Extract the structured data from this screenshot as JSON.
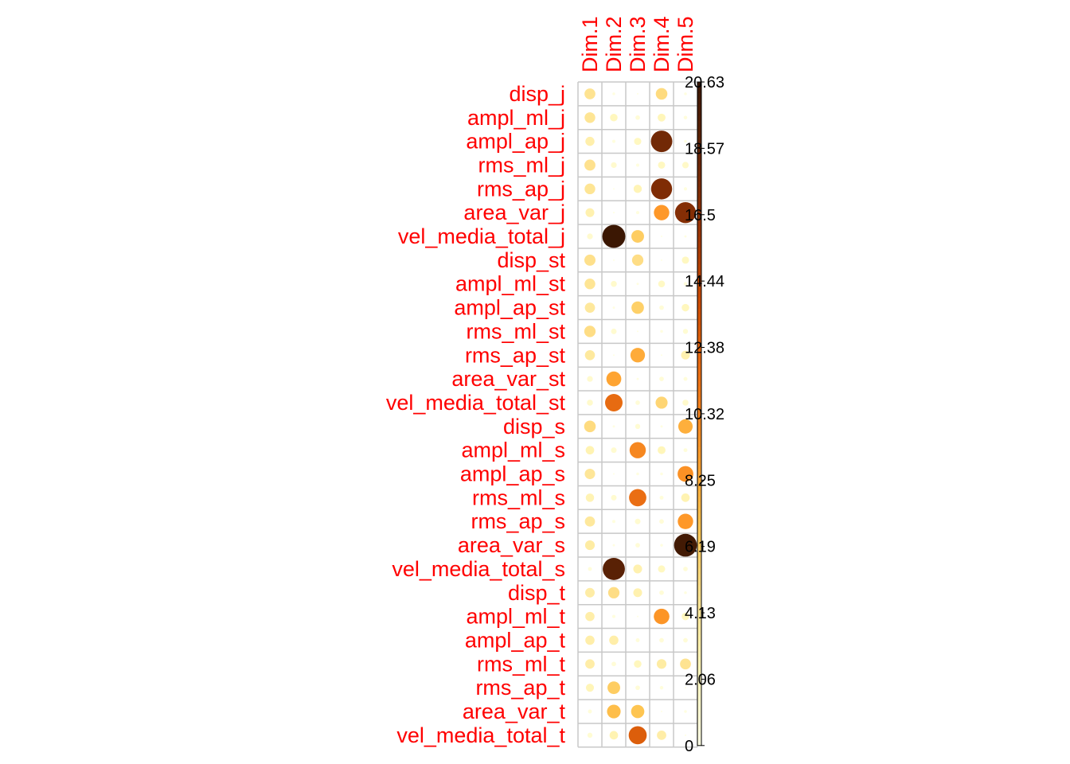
{
  "chart_data": {
    "type": "heatmap",
    "title": "",
    "rows": [
      "disp_j",
      "ampl_ml_j",
      "ampl_ap_j",
      "rms_ml_j",
      "rms_ap_j",
      "area_var_j",
      "vel_media_total_j",
      "disp_st",
      "ampl_ml_st",
      "ampl_ap_st",
      "rms_ml_st",
      "rms_ap_st",
      "area_var_st",
      "vel_media_total_st",
      "disp_s",
      "ampl_ml_s",
      "ampl_ap_s",
      "rms_ml_s",
      "rms_ap_s",
      "area_var_s",
      "vel_media_total_s",
      "disp_t",
      "ampl_ml_t",
      "ampl_ap_t",
      "rms_ml_t",
      "rms_ap_t",
      "area_var_t",
      "vel_media_total_t"
    ],
    "columns": [
      "Dim.1",
      "Dim.2",
      "Dim.3",
      "Dim.4",
      "Dim.5"
    ],
    "values": [
      [
        4.6,
        0.3,
        0.1,
        5.2,
        0.3
      ],
      [
        4.4,
        2.2,
        0.8,
        2.4,
        0.5
      ],
      [
        3.2,
        0.4,
        2.0,
        17.8,
        0.3
      ],
      [
        4.7,
        1.3,
        0.4,
        2.0,
        1.6
      ],
      [
        4.4,
        0.1,
        2.6,
        17.2,
        0.4
      ],
      [
        3.0,
        0.1,
        0.4,
        9.2,
        17.0
      ],
      [
        1.3,
        20.6,
        6.2,
        0.1,
        0.2
      ],
      [
        4.8,
        0.1,
        5.0,
        0.1,
        2.0
      ],
      [
        4.4,
        1.4,
        0.2,
        1.8,
        0.5
      ],
      [
        4.0,
        0.2,
        6.0,
        0.8,
        2.2
      ],
      [
        5.0,
        1.2,
        0.1,
        0.3,
        1.0
      ],
      [
        3.9,
        0.1,
        8.2,
        0.1,
        3.0
      ],
      [
        1.3,
        8.6,
        0.2,
        0.8,
        0.6
      ],
      [
        1.4,
        11.8,
        0.8,
        5.6,
        1.4
      ],
      [
        5.2,
        0.2,
        1.0,
        0.2,
        8.0
      ],
      [
        2.8,
        1.2,
        10.2,
        2.4,
        0.6
      ],
      [
        4.2,
        0.1,
        0.3,
        0.3,
        9.6
      ],
      [
        2.7,
        1.2,
        11.6,
        0.6,
        2.8
      ],
      [
        4.0,
        0.4,
        1.2,
        0.8,
        9.2
      ],
      [
        3.6,
        0.2,
        0.8,
        0.3,
        20.2
      ],
      [
        0.6,
        19.0,
        3.0,
        2.0,
        0.8
      ],
      [
        3.5,
        5.0,
        3.0,
        0.8,
        0.3
      ],
      [
        3.3,
        0.4,
        0.1,
        9.4,
        2.2
      ],
      [
        3.3,
        3.3,
        0.6,
        0.8,
        0.8
      ],
      [
        3.4,
        0.8,
        2.2,
        3.6,
        4.6
      ],
      [
        2.5,
        6.2,
        0.8,
        0.5,
        0.1
      ],
      [
        0.6,
        7.2,
        6.8,
        0.1,
        0.3
      ],
      [
        1.0,
        2.8,
        12.6,
        3.4,
        0.1
      ]
    ],
    "legend": {
      "ticks": [
        "20.63",
        "18.57",
        "16.5",
        "14.44",
        "12.38",
        "10.32",
        "8.25",
        "6.19",
        "4.13",
        "2.06",
        "0"
      ],
      "min": 0,
      "max": 20.63
    },
    "colors": {
      "label": "#ff0000",
      "grid": "#c8c8c8",
      "scale": [
        "#ffffe5",
        "#fff7bc",
        "#fee391",
        "#fec44f",
        "#fe9929",
        "#ec7014",
        "#cc4c02",
        "#993404",
        "#662506",
        "#3a1703"
      ]
    }
  }
}
